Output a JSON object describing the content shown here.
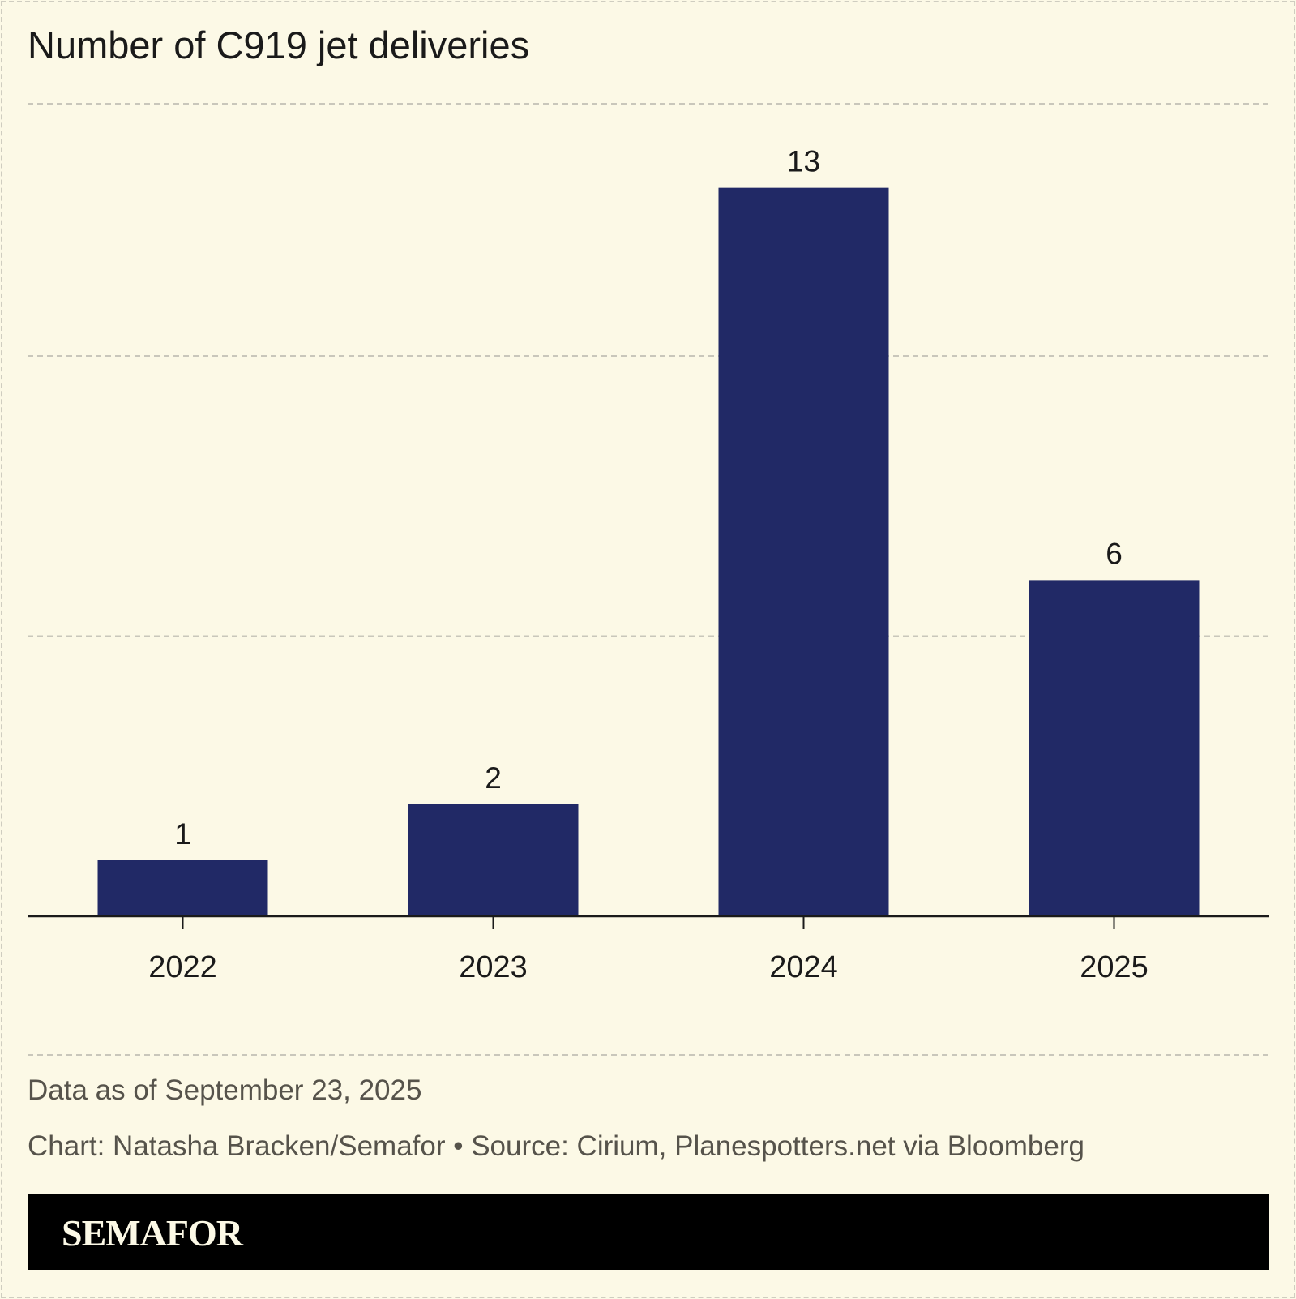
{
  "chart_data": {
    "type": "bar",
    "title": "Number of C919 jet deliveries",
    "categories": [
      "2022",
      "2023",
      "2024",
      "2025"
    ],
    "values": [
      1,
      2,
      13,
      6
    ],
    "data_labels": [
      "1",
      "2",
      "13",
      "6"
    ],
    "xlabel": "",
    "ylabel": "",
    "ylim": [
      0,
      14.5
    ],
    "gridlines": [
      5,
      10
    ],
    "grid": true,
    "y_tick_labels_shown": false,
    "bar_color": "#212966",
    "background_color": "#fcf9e6"
  },
  "footer": {
    "note": "Data as of September 23, 2025",
    "credit": "Chart: Natasha Bracken/Semafor • Source: Cirium, Planespotters.net via Bloomberg",
    "brand": "SEMAFOR"
  }
}
